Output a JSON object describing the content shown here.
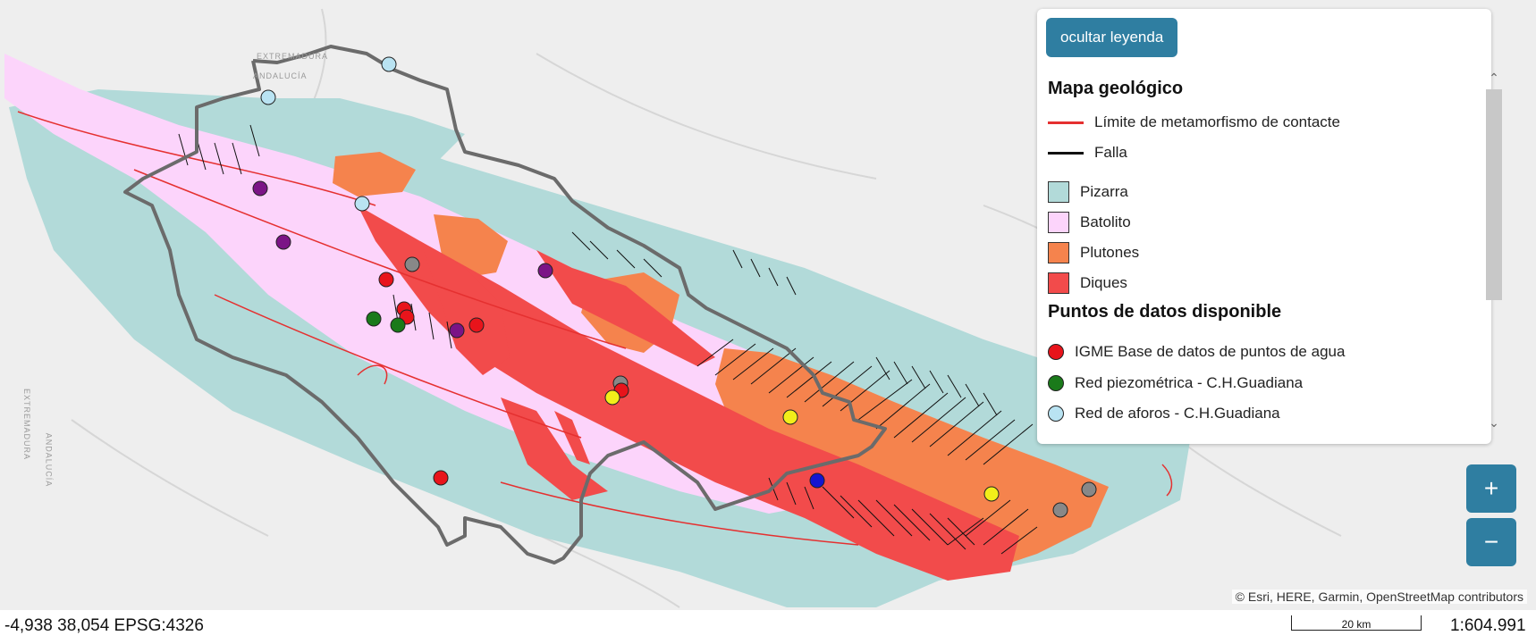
{
  "map": {
    "region_labels": [
      "EXTREMADURA",
      "ANDALUCÍA",
      "EXTREMADURA",
      "ANDALUCÍA"
    ],
    "colors": {
      "background": "#eeeeee",
      "pizarra": "#b2dad9",
      "batolito": "#fcd4fb",
      "plutones": "#f5834d",
      "diques": "#f24b4b",
      "contact_limit": "#e53030",
      "fault": "#111111",
      "boundary": "#6b6b6b"
    }
  },
  "legend": {
    "toggle_label": "ocultar leyenda",
    "geologic_title": "Mapa geológico",
    "lines": [
      {
        "label": "Límite de metamorfismo de contacte",
        "color": "#e53030"
      },
      {
        "label": "Falla",
        "color": "#111111"
      }
    ],
    "units": [
      {
        "label": "Pizarra",
        "color": "#b2dad9"
      },
      {
        "label": "Batolito",
        "color": "#fcd4fb"
      },
      {
        "label": "Plutones",
        "color": "#f5834d"
      },
      {
        "label": "Diques",
        "color": "#f24b4b"
      }
    ],
    "points_title": "Puntos de datos disponible",
    "points": [
      {
        "label": "IGME Base de datos de puntos de agua",
        "color": "#e8141b"
      },
      {
        "label": "Red piezométrica - C.H.Guadiana",
        "color": "#1a7a1a"
      },
      {
        "label": "Red de aforos - C.H.Guadiana",
        "color": "#b9e3f2"
      }
    ]
  },
  "controls": {
    "zoom_in": "+",
    "zoom_out": "−",
    "scroll_up_icon": "chevron-up",
    "scroll_down_icon": "chevron-down"
  },
  "footer": {
    "attribution": "© Esri, HERE, Garmin, OpenStreetMap contributors",
    "coordinates": "-4,938 38,054 EPSG:4326",
    "scale_label": "20 km",
    "scale_ratio": "1:604.991"
  }
}
